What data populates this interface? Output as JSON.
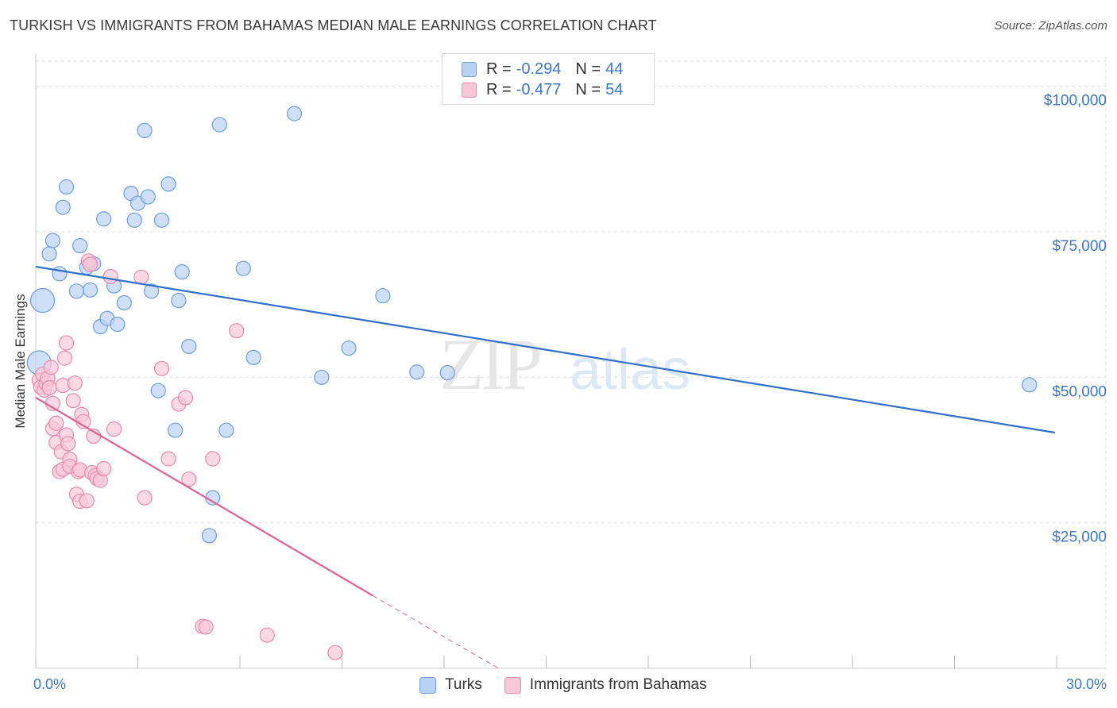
{
  "header": {
    "title": "TURKISH VS IMMIGRANTS FROM BAHAMAS MEDIAN MALE EARNINGS CORRELATION CHART",
    "source": "Source: ZipAtlas.com"
  },
  "watermark": {
    "zip": "ZIP",
    "atlas": "atlas"
  },
  "legend": {
    "turks": {
      "r_label": "R =",
      "r_value": "-0.294",
      "n_label": "N =",
      "n_value": "44"
    },
    "bahamas": {
      "r_label": "R =",
      "r_value": "-0.477",
      "n_label": "N =",
      "n_value": "54"
    }
  },
  "bottom_legend": {
    "turks": "Turks",
    "bahamas": "Immigrants from Bahamas"
  },
  "colors": {
    "turks_fill": "#b9d2f3",
    "turks_stroke": "#6d9ee0",
    "turks_line": "#2f6fcc",
    "bahamas_fill": "#f8c8d8",
    "bahamas_stroke": "#eb89aa",
    "bahamas_line": "#e0608e",
    "axis_label": "#3a78c9",
    "grid": "#dddddd"
  },
  "chart_data": {
    "type": "scatter",
    "title": "TURKISH VS IMMIGRANTS FROM BAHAMAS MEDIAN MALE EARNINGS CORRELATION CHART",
    "xlabel": "",
    "ylabel": "Median Male Earnings",
    "xlim": [
      0,
      30
    ],
    "ylim": [
      0,
      105000
    ],
    "x_tick_labels": [
      "0.0%",
      "30.0%"
    ],
    "y_ticks": [
      25000,
      50000,
      75000,
      100000
    ],
    "y_tick_labels": [
      "$25,000",
      "$50,000",
      "$75,000",
      "$100,000"
    ],
    "grid": true,
    "series": [
      {
        "name": "Turks",
        "r": -0.294,
        "n": 44,
        "trend": {
          "x0": 0,
          "y0": 69000,
          "x1": 29.95,
          "y1": 40500
        },
        "points": [
          [
            0.1,
            52500,
            "big"
          ],
          [
            0.2,
            63200,
            "big"
          ],
          [
            0.4,
            71200
          ],
          [
            0.5,
            73500
          ],
          [
            0.7,
            67800
          ],
          [
            0.9,
            82700
          ],
          [
            0.8,
            79200
          ],
          [
            1.2,
            64800
          ],
          [
            1.3,
            72600
          ],
          [
            1.5,
            68900
          ],
          [
            1.6,
            65000
          ],
          [
            1.7,
            69500
          ],
          [
            2.0,
            77200
          ],
          [
            1.9,
            58700
          ],
          [
            2.1,
            60100
          ],
          [
            2.3,
            65700
          ],
          [
            2.4,
            59100
          ],
          [
            2.6,
            62800
          ],
          [
            2.8,
            81600
          ],
          [
            2.9,
            77000
          ],
          [
            3.0,
            79900
          ],
          [
            3.2,
            92400
          ],
          [
            3.3,
            81000
          ],
          [
            3.4,
            64800
          ],
          [
            3.6,
            47700
          ],
          [
            3.7,
            77000
          ],
          [
            3.9,
            83200
          ],
          [
            4.1,
            40900
          ],
          [
            4.2,
            63200
          ],
          [
            4.3,
            68100
          ],
          [
            4.5,
            55300
          ],
          [
            5.2,
            29300
          ],
          [
            5.1,
            22800
          ],
          [
            5.4,
            93400
          ],
          [
            5.6,
            40900
          ],
          [
            6.1,
            68700
          ],
          [
            6.4,
            53400
          ],
          [
            7.6,
            95300
          ],
          [
            8.4,
            50000
          ],
          [
            9.2,
            55000
          ],
          [
            10.2,
            64000
          ],
          [
            11.2,
            50900
          ],
          [
            12.1,
            50800
          ],
          [
            29.2,
            48700
          ]
        ]
      },
      {
        "name": "Immigrants from Bahamas",
        "r": -0.477,
        "n": 54,
        "trend": {
          "x0": 0,
          "y0": 46500,
          "x1": 9.9,
          "y1": 12500
        },
        "trend_dashed_to": {
          "x": 13.6,
          "y": 0
        },
        "points": [
          [
            0.1,
            49500
          ],
          [
            0.15,
            48300
          ],
          [
            0.2,
            50500
          ],
          [
            0.25,
            47800
          ],
          [
            0.3,
            48900
          ],
          [
            0.35,
            49800
          ],
          [
            0.4,
            48200
          ],
          [
            0.45,
            51700
          ],
          [
            0.5,
            45500
          ],
          [
            0.5,
            41200
          ],
          [
            0.6,
            42100
          ],
          [
            0.6,
            38800
          ],
          [
            0.7,
            33800
          ],
          [
            0.75,
            37200
          ],
          [
            0.8,
            34200
          ],
          [
            0.8,
            48600
          ],
          [
            0.85,
            53300
          ],
          [
            0.9,
            55900
          ],
          [
            0.9,
            40100
          ],
          [
            0.95,
            38600
          ],
          [
            1.0,
            35900
          ],
          [
            1.0,
            34700
          ],
          [
            1.1,
            46000
          ],
          [
            1.2,
            29900
          ],
          [
            1.25,
            33800
          ],
          [
            1.3,
            34100
          ],
          [
            1.3,
            28700
          ],
          [
            1.35,
            43600
          ],
          [
            1.4,
            42400
          ],
          [
            1.5,
            28800
          ],
          [
            1.55,
            70000
          ],
          [
            1.6,
            69400
          ],
          [
            1.65,
            33600
          ],
          [
            1.7,
            39900
          ],
          [
            1.75,
            33100
          ],
          [
            1.8,
            32600
          ],
          [
            1.9,
            32300
          ],
          [
            2.0,
            34300
          ],
          [
            2.2,
            67300
          ],
          [
            2.3,
            41100
          ],
          [
            3.1,
            67200
          ],
          [
            3.2,
            29300
          ],
          [
            3.7,
            51500
          ],
          [
            3.9,
            36000
          ],
          [
            4.2,
            45400
          ],
          [
            4.4,
            46500
          ],
          [
            4.5,
            32500
          ],
          [
            4.9,
            7200
          ],
          [
            5.0,
            7100
          ],
          [
            5.2,
            36000
          ],
          [
            5.9,
            58000
          ],
          [
            6.8,
            5700
          ],
          [
            8.8,
            2700
          ],
          [
            1.15,
            49000
          ]
        ]
      }
    ]
  }
}
